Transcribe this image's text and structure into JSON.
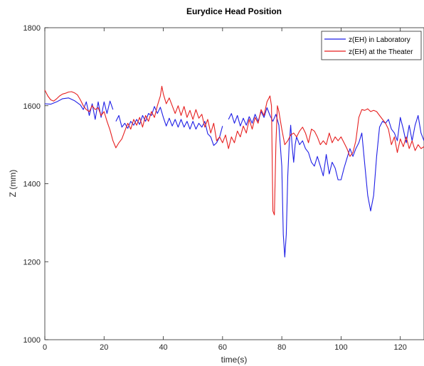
{
  "chart_data": {
    "type": "line",
    "title": "Eurydice Head Position",
    "xlabel": "time(s)",
    "ylabel": "Z (mm)",
    "xlim": [
      0,
      128
    ],
    "ylim": [
      1000,
      1800
    ],
    "xticks": [
      0,
      20,
      40,
      60,
      80,
      100,
      120
    ],
    "yticks": [
      1000,
      1200,
      1400,
      1600,
      1800
    ],
    "xtick_labels": [
      "0",
      "20",
      "40",
      "60",
      "80",
      "100",
      "120"
    ],
    "ytick_labels": [
      "1000",
      "1200",
      "1400",
      "1600",
      "1800"
    ],
    "grid": false,
    "legend_position": "top-right",
    "colors": {
      "lab": "#1f1fe6",
      "theater": "#e61f1f"
    },
    "series": [
      {
        "name": "z(EH) in Laboratory",
        "segments": [
          [
            [
              0,
              1605
            ],
            [
              2,
              1604
            ],
            [
              4,
              1610
            ],
            [
              6,
              1618
            ],
            [
              8,
              1620
            ],
            [
              10,
              1613
            ],
            [
              12,
              1602
            ],
            [
              13,
              1590
            ],
            [
              14,
              1610
            ],
            [
              15,
              1575
            ],
            [
              16,
              1605
            ],
            [
              17,
              1565
            ],
            [
              18,
              1610
            ],
            [
              19,
              1570
            ],
            [
              20,
              1610
            ],
            [
              21,
              1580
            ],
            [
              22,
              1612
            ],
            [
              23,
              1590
            ]
          ],
          [
            [
              24,
              1560
            ],
            [
              25,
              1575
            ],
            [
              26,
              1545
            ],
            [
              27,
              1555
            ],
            [
              28,
              1542
            ],
            [
              29,
              1560
            ],
            [
              30,
              1550
            ],
            [
              31,
              1565
            ],
            [
              32,
              1552
            ],
            [
              33,
              1575
            ],
            [
              34,
              1560
            ],
            [
              35,
              1580
            ],
            [
              36,
              1575
            ],
            [
              37,
              1598
            ],
            [
              38,
              1580
            ],
            [
              39,
              1596
            ],
            [
              40,
              1570
            ],
            [
              41,
              1548
            ],
            [
              42,
              1568
            ],
            [
              43,
              1548
            ],
            [
              44,
              1565
            ],
            [
              45,
              1545
            ],
            [
              46,
              1565
            ],
            [
              47,
              1545
            ],
            [
              48,
              1560
            ],
            [
              49,
              1540
            ],
            [
              50,
              1560
            ],
            [
              51,
              1540
            ],
            [
              52,
              1555
            ],
            [
              53,
              1545
            ],
            [
              54,
              1560
            ],
            [
              55,
              1528
            ],
            [
              56,
              1520
            ],
            [
              57,
              1498
            ],
            [
              58,
              1505
            ],
            [
              59,
              1520
            ],
            [
              60,
              1548
            ]
          ],
          [
            [
              62,
              1565
            ],
            [
              63,
              1580
            ],
            [
              64,
              1555
            ],
            [
              65,
              1575
            ],
            [
              66,
              1548
            ],
            [
              67,
              1568
            ],
            [
              68,
              1550
            ],
            [
              69,
              1572
            ],
            [
              70,
              1555
            ],
            [
              71,
              1578
            ],
            [
              72,
              1560
            ],
            [
              73,
              1585
            ],
            [
              74,
              1570
            ],
            [
              75,
              1595
            ],
            [
              76,
              1575
            ],
            [
              77,
              1560
            ],
            [
              78,
              1578
            ],
            [
              79,
              1550
            ],
            [
              80,
              1445
            ],
            [
              80.5,
              1270
            ],
            [
              81,
              1212
            ],
            [
              81.5,
              1270
            ],
            [
              82,
              1420
            ],
            [
              82.5,
              1500
            ],
            [
              83,
              1550
            ],
            [
              83.5,
              1495
            ],
            [
              84,
              1455
            ],
            [
              84.5,
              1500
            ],
            [
              85,
              1520
            ],
            [
              86,
              1500
            ],
            [
              87,
              1510
            ],
            [
              88,
              1490
            ],
            [
              89,
              1480
            ],
            [
              90,
              1455
            ],
            [
              91,
              1445
            ],
            [
              92,
              1470
            ],
            [
              93,
              1445
            ],
            [
              94,
              1420
            ],
            [
              95,
              1475
            ],
            [
              96,
              1425
            ],
            [
              97,
              1455
            ],
            [
              98,
              1440
            ],
            [
              99,
              1410
            ],
            [
              100,
              1410
            ],
            [
              101,
              1440
            ],
            [
              102,
              1465
            ],
            [
              103,
              1490
            ],
            [
              104,
              1470
            ],
            [
              105,
              1490
            ],
            [
              106,
              1505
            ],
            [
              107,
              1530
            ],
            [
              108,
              1450
            ],
            [
              109,
              1370
            ],
            [
              110,
              1330
            ],
            [
              111,
              1370
            ],
            [
              112,
              1470
            ],
            [
              113,
              1545
            ],
            [
              114,
              1560
            ],
            [
              115,
              1555
            ],
            [
              116,
              1565
            ],
            [
              117,
              1540
            ],
            [
              118,
              1530
            ],
            [
              119,
              1510
            ],
            [
              120,
              1570
            ],
            [
              121,
              1540
            ],
            [
              122,
              1505
            ],
            [
              123,
              1550
            ],
            [
              124,
              1510
            ],
            [
              125,
              1550
            ],
            [
              126,
              1575
            ],
            [
              127,
              1530
            ],
            [
              128,
              1510
            ]
          ]
        ]
      },
      {
        "name": "z(EH) at the Theater",
        "segments": [
          [
            [
              0,
              1640
            ],
            [
              1,
              1625
            ],
            [
              2,
              1615
            ],
            [
              3,
              1612
            ],
            [
              4,
              1618
            ],
            [
              5,
              1625
            ],
            [
              6,
              1630
            ],
            [
              7,
              1632
            ],
            [
              8,
              1635
            ],
            [
              9,
              1636
            ],
            [
              10,
              1633
            ],
            [
              11,
              1628
            ],
            [
              12,
              1615
            ],
            [
              13,
              1600
            ],
            [
              14,
              1590
            ],
            [
              15,
              1585
            ],
            [
              16,
              1600
            ],
            [
              17,
              1590
            ],
            [
              18,
              1595
            ],
            [
              19,
              1575
            ],
            [
              20,
              1585
            ],
            [
              21,
              1560
            ],
            [
              22,
              1538
            ],
            [
              23,
              1510
            ],
            [
              24,
              1492
            ],
            [
              25,
              1505
            ],
            [
              26,
              1515
            ],
            [
              27,
              1535
            ],
            [
              28,
              1555
            ],
            [
              29,
              1540
            ],
            [
              30,
              1565
            ],
            [
              31,
              1550
            ],
            [
              32,
              1570
            ],
            [
              33,
              1545
            ],
            [
              34,
              1575
            ],
            [
              35,
              1560
            ],
            [
              36,
              1585
            ],
            [
              37,
              1570
            ],
            [
              38,
              1600
            ],
            [
              39,
              1625
            ],
            [
              39.5,
              1650
            ],
            [
              40,
              1630
            ],
            [
              41,
              1605
            ],
            [
              42,
              1620
            ],
            [
              43,
              1600
            ],
            [
              44,
              1580
            ],
            [
              45,
              1600
            ],
            [
              46,
              1575
            ],
            [
              47,
              1598
            ],
            [
              48,
              1570
            ],
            [
              49,
              1588
            ],
            [
              50,
              1565
            ],
            [
              51,
              1590
            ],
            [
              52,
              1568
            ],
            [
              53,
              1578
            ],
            [
              54,
              1545
            ],
            [
              55,
              1565
            ],
            [
              56,
              1530
            ],
            [
              57,
              1555
            ],
            [
              58,
              1510
            ],
            [
              59,
              1520
            ],
            [
              60,
              1505
            ],
            [
              61,
              1525
            ],
            [
              62,
              1490
            ],
            [
              63,
              1520
            ],
            [
              64,
              1505
            ],
            [
              65,
              1535
            ],
            [
              66,
              1520
            ],
            [
              67,
              1548
            ],
            [
              68,
              1530
            ],
            [
              69,
              1565
            ],
            [
              70,
              1540
            ],
            [
              71,
              1570
            ],
            [
              72,
              1555
            ],
            [
              73,
              1590
            ],
            [
              74,
              1575
            ],
            [
              75,
              1610
            ],
            [
              76,
              1625
            ],
            [
              76.5,
              1600
            ],
            [
              77,
              1330
            ],
            [
              77.5,
              1320
            ],
            [
              78,
              1500
            ],
            [
              78.5,
              1600
            ],
            [
              79,
              1585
            ],
            [
              80,
              1540
            ],
            [
              81,
              1500
            ],
            [
              82,
              1510
            ],
            [
              83,
              1525
            ],
            [
              84,
              1530
            ],
            [
              85,
              1520
            ],
            [
              86,
              1535
            ],
            [
              87,
              1545
            ],
            [
              88,
              1530
            ],
            [
              89,
              1505
            ],
            [
              90,
              1540
            ],
            [
              91,
              1535
            ],
            [
              92,
              1520
            ],
            [
              93,
              1500
            ],
            [
              94,
              1510
            ],
            [
              95,
              1500
            ],
            [
              96,
              1530
            ],
            [
              97,
              1505
            ],
            [
              98,
              1520
            ],
            [
              99,
              1510
            ],
            [
              100,
              1520
            ],
            [
              101,
              1505
            ],
            [
              102,
              1490
            ],
            [
              103,
              1470
            ],
            [
              104,
              1480
            ],
            [
              105,
              1510
            ],
            [
              106,
              1570
            ],
            [
              107,
              1590
            ],
            [
              108,
              1588
            ],
            [
              109,
              1592
            ],
            [
              110,
              1585
            ],
            [
              111,
              1588
            ],
            [
              112,
              1585
            ],
            [
              113,
              1575
            ],
            [
              114,
              1565
            ],
            [
              115,
              1555
            ],
            [
              116,
              1540
            ],
            [
              117,
              1500
            ],
            [
              118,
              1520
            ],
            [
              119,
              1480
            ],
            [
              120,
              1515
            ],
            [
              121,
              1495
            ],
            [
              122,
              1520
            ],
            [
              123,
              1490
            ],
            [
              124,
              1510
            ],
            [
              125,
              1485
            ],
            [
              126,
              1500
            ],
            [
              127,
              1490
            ],
            [
              128,
              1495
            ]
          ]
        ]
      }
    ]
  }
}
